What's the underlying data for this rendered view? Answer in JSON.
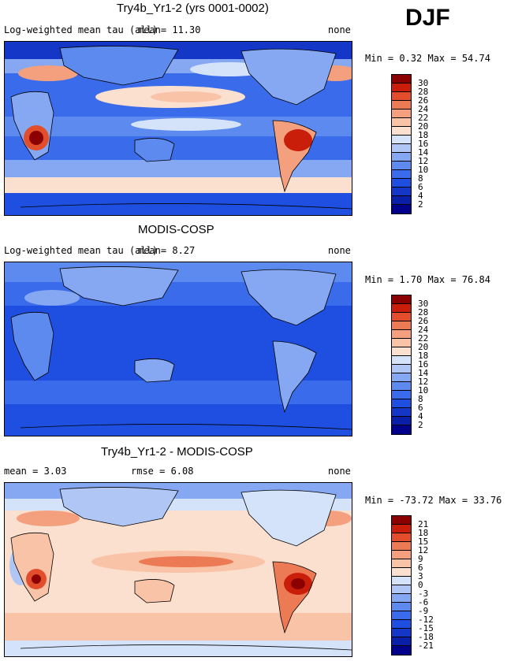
{
  "season": "DJF",
  "panels": [
    {
      "title": "Try4b_Yr1-2 (yrs 0001-0002)",
      "left_text": "Log-weighted mean tau (all)",
      "mean_text": "mean=  11.30",
      "rmse_text": "",
      "right_text": "none",
      "minmax_text": "Min =   0.32 Max =  54.74",
      "colorbar_labels": [
        "30",
        "28",
        "26",
        "24",
        "22",
        "20",
        "18",
        "16",
        "14",
        "12",
        "10",
        "8",
        "6",
        "4",
        "2"
      ]
    },
    {
      "title": "MODIS-COSP",
      "left_text": "Log-weighted mean tau (all)",
      "mean_text": "mean=   8.27",
      "rmse_text": "",
      "right_text": "none",
      "minmax_text": "Min =   1.70 Max =  76.84",
      "colorbar_labels": [
        "30",
        "28",
        "26",
        "24",
        "22",
        "20",
        "18",
        "16",
        "14",
        "12",
        "10",
        "8",
        "6",
        "4",
        "2"
      ]
    },
    {
      "title": "Try4b_Yr1-2 - MODIS-COSP",
      "left_text": "mean =   3.03",
      "mean_text": "",
      "rmse_text": "rmse =   6.08",
      "right_text": "none",
      "minmax_text": "Min = -73.72 Max =  33.76",
      "colorbar_labels": [
        "21",
        "18",
        "15",
        "12",
        "9",
        "6",
        "3",
        "0",
        "-3",
        "-6",
        "-9",
        "-12",
        "-15",
        "-18",
        "-21"
      ]
    }
  ],
  "chart_data": [
    {
      "type": "heatmap",
      "title": "Try4b_Yr1-2 (yrs 0001-0002)",
      "field": "Log-weighted mean tau (all)",
      "mean": 11.3,
      "min": 0.32,
      "max": 54.74,
      "levels": [
        2,
        4,
        6,
        8,
        10,
        12,
        14,
        16,
        18,
        20,
        22,
        24,
        26,
        28,
        30
      ],
      "colors": [
        "#00008b",
        "#0a1fa8",
        "#1437c8",
        "#1f4fe0",
        "#3a6bea",
        "#5d8aee",
        "#86a8f2",
        "#b0c7f6",
        "#d5e3fa",
        "#fbe0d0",
        "#f9c3a8",
        "#f4a07e",
        "#ec7a55",
        "#e24d2c",
        "#c81e0a",
        "#8b0000"
      ]
    },
    {
      "type": "heatmap",
      "title": "MODIS-COSP",
      "field": "Log-weighted mean tau (all)",
      "mean": 8.27,
      "min": 1.7,
      "max": 76.84,
      "levels": [
        2,
        4,
        6,
        8,
        10,
        12,
        14,
        16,
        18,
        20,
        22,
        24,
        26,
        28,
        30
      ],
      "colors": [
        "#00008b",
        "#0a1fa8",
        "#1437c8",
        "#1f4fe0",
        "#3a6bea",
        "#5d8aee",
        "#86a8f2",
        "#b0c7f6",
        "#d5e3fa",
        "#fbe0d0",
        "#f9c3a8",
        "#f4a07e",
        "#ec7a55",
        "#e24d2c",
        "#c81e0a",
        "#8b0000"
      ]
    },
    {
      "type": "heatmap",
      "title": "Try4b_Yr1-2 - MODIS-COSP",
      "mean": 3.03,
      "rmse": 6.08,
      "min": -73.72,
      "max": 33.76,
      "levels": [
        -21,
        -18,
        -15,
        -12,
        -9,
        -6,
        -3,
        0,
        3,
        6,
        9,
        12,
        15,
        18,
        21
      ],
      "colors": [
        "#00008b",
        "#0a1fa8",
        "#1437c8",
        "#1f4fe0",
        "#3a6bea",
        "#5d8aee",
        "#86a8f2",
        "#b0c7f6",
        "#d5e3fa",
        "#fbe0d0",
        "#f9c3a8",
        "#f4a07e",
        "#ec7a55",
        "#e24d2c",
        "#c81e0a",
        "#8b0000"
      ]
    }
  ]
}
